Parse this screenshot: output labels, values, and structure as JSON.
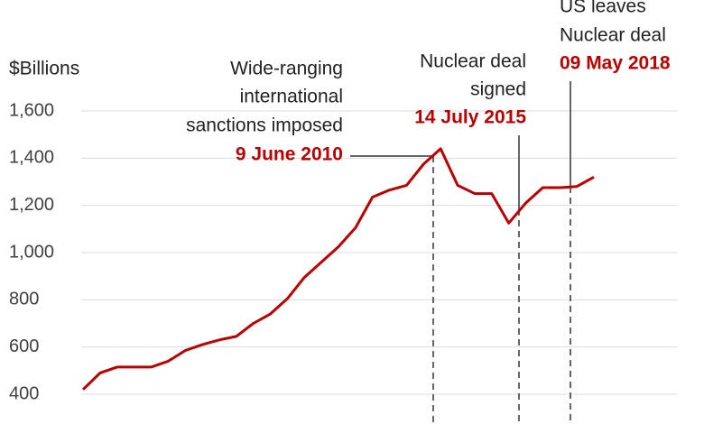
{
  "chart_data": {
    "type": "line",
    "y_label": "$Billions",
    "categories": [
      null,
      null,
      null,
      null,
      null,
      null,
      null,
      null,
      null,
      null,
      null,
      null,
      null,
      null,
      null,
      null,
      null,
      null,
      null,
      null,
      null,
      null,
      null,
      null,
      null,
      null,
      null,
      null,
      null,
      null,
      null
    ],
    "series": [
      {
        "color": "#b80000",
        "values": [
          420,
          490,
          515,
          515,
          515,
          540,
          585,
          610,
          630,
          645,
          700,
          740,
          805,
          895,
          960,
          1025,
          1105,
          1235,
          1265,
          1285,
          1375,
          1440,
          1285,
          1250,
          1250,
          1125,
          1210,
          1275,
          1275,
          1280,
          1320
        ]
      }
    ],
    "ylim": [
      400,
      1600
    ],
    "yticks": [
      400,
      600,
      800,
      {
        "value": 1000,
        "label": "1,000"
      },
      {
        "value": 1200,
        "label": "1,200"
      },
      {
        "value": 1400,
        "label": "1,400"
      },
      {
        "value": 1600,
        "label": "1,600"
      }
    ],
    "grid": true,
    "annotations": [
      {
        "lines": [
          "Wide-ranging",
          "international",
          "sanctions imposed"
        ],
        "date": "9 June 2010"
      },
      {
        "lines": [
          "Nuclear deal",
          "signed"
        ],
        "date": "14 July 2015"
      },
      {
        "lines": [
          "US leaves",
          "Nuclear deal"
        ],
        "date": "09 May 2018"
      }
    ]
  }
}
